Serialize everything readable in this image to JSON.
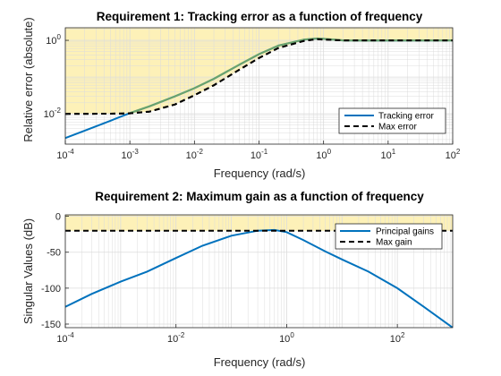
{
  "colors": {
    "background": "#ffffff",
    "violation_region": "#fdf1b8",
    "violation_edge": "#e6d690",
    "grid": "#dcdcdc",
    "axis": "#262626",
    "series_primary": "#0072bd",
    "series_overlay": "#7aaa62",
    "requirement_line": "#000000"
  },
  "chart_data": [
    {
      "type": "line",
      "title": "Requirement 1: Tracking error as a function of frequency",
      "xlabel": "Frequency (rad/s)",
      "ylabel": "Relative error (absolute)",
      "xscale": "log",
      "yscale": "log",
      "xlim": [
        0.0001,
        100
      ],
      "ylim": [
        0.0015,
        2.2
      ],
      "grid": true,
      "legend_location": "bottom-right",
      "x_ticks": [
        {
          "value": 0.0001,
          "base": "10",
          "exp": "-4"
        },
        {
          "value": 0.001,
          "base": "10",
          "exp": "-3"
        },
        {
          "value": 0.01,
          "base": "10",
          "exp": "-2"
        },
        {
          "value": 0.1,
          "base": "10",
          "exp": "-1"
        },
        {
          "value": 1,
          "base": "10",
          "exp": "0"
        },
        {
          "value": 10,
          "base": "10",
          "exp": "1"
        },
        {
          "value": 100,
          "base": "10",
          "exp": "2"
        }
      ],
      "y_ticks": [
        {
          "value": 0.01,
          "base": "10",
          "exp": "-2"
        },
        {
          "value": 1,
          "base": "10",
          "exp": "0"
        }
      ],
      "shaded_region": "above Max error",
      "series": [
        {
          "name": "Tracking error",
          "style": "solid",
          "x": [
            0.0001,
            0.0002,
            0.0005,
            0.001,
            0.002,
            0.005,
            0.01,
            0.02,
            0.05,
            0.1,
            0.2,
            0.5,
            0.8,
            1,
            2,
            5,
            10,
            100
          ],
          "y": [
            0.0022,
            0.0035,
            0.0065,
            0.0105,
            0.016,
            0.03,
            0.05,
            0.09,
            0.22,
            0.42,
            0.72,
            1.05,
            1.12,
            1.1,
            1.0,
            0.985,
            0.99,
            1.0
          ]
        },
        {
          "name": "Max error",
          "style": "dashed",
          "x": [
            0.0001,
            0.0005,
            0.001,
            0.002,
            0.005,
            0.01,
            0.02,
            0.05,
            0.1,
            0.2,
            0.5,
            0.8,
            1,
            2,
            10,
            100
          ],
          "y": [
            0.01,
            0.0101,
            0.0103,
            0.0115,
            0.018,
            0.032,
            0.06,
            0.16,
            0.33,
            0.62,
            0.97,
            1.08,
            1.05,
            1.0,
            1.0,
            1.0
          ]
        }
      ]
    },
    {
      "type": "line",
      "title": "Requirement 2: Maximum gain as a function of frequency",
      "xlabel": "Frequency (rad/s)",
      "ylabel": "Singular Values (dB)",
      "xscale": "log",
      "yscale": "linear",
      "xlim": [
        0.0001,
        1000
      ],
      "ylim": [
        -155,
        2
      ],
      "grid": true,
      "legend_location": "top-right",
      "x_ticks": [
        {
          "value": 0.0001,
          "base": "10",
          "exp": "-4"
        },
        {
          "value": 0.01,
          "base": "10",
          "exp": "-2"
        },
        {
          "value": 1,
          "base": "10",
          "exp": "0"
        },
        {
          "value": 100,
          "base": "10",
          "exp": "2"
        }
      ],
      "y_ticks": [
        {
          "value": 0,
          "label": "0"
        },
        {
          "value": -50,
          "label": "-50"
        },
        {
          "value": -100,
          "label": "-100"
        },
        {
          "value": -150,
          "label": "-150"
        }
      ],
      "shaded_region": "above Max gain",
      "series": [
        {
          "name": "Principal gains",
          "style": "solid",
          "x": [
            0.0001,
            0.0003,
            0.001,
            0.003,
            0.01,
            0.03,
            0.1,
            0.3,
            0.6,
            1,
            2,
            5,
            10,
            30,
            100,
            300,
            1000
          ],
          "y": [
            -126,
            -108,
            -91,
            -77,
            -58,
            -41,
            -27,
            -20,
            -19,
            -22,
            -33,
            -49,
            -60,
            -77,
            -100,
            -126,
            -155
          ]
        },
        {
          "name": "Max gain",
          "style": "dashed",
          "x": [
            0.0001,
            1000
          ],
          "y": [
            -20,
            -20
          ]
        }
      ]
    }
  ]
}
